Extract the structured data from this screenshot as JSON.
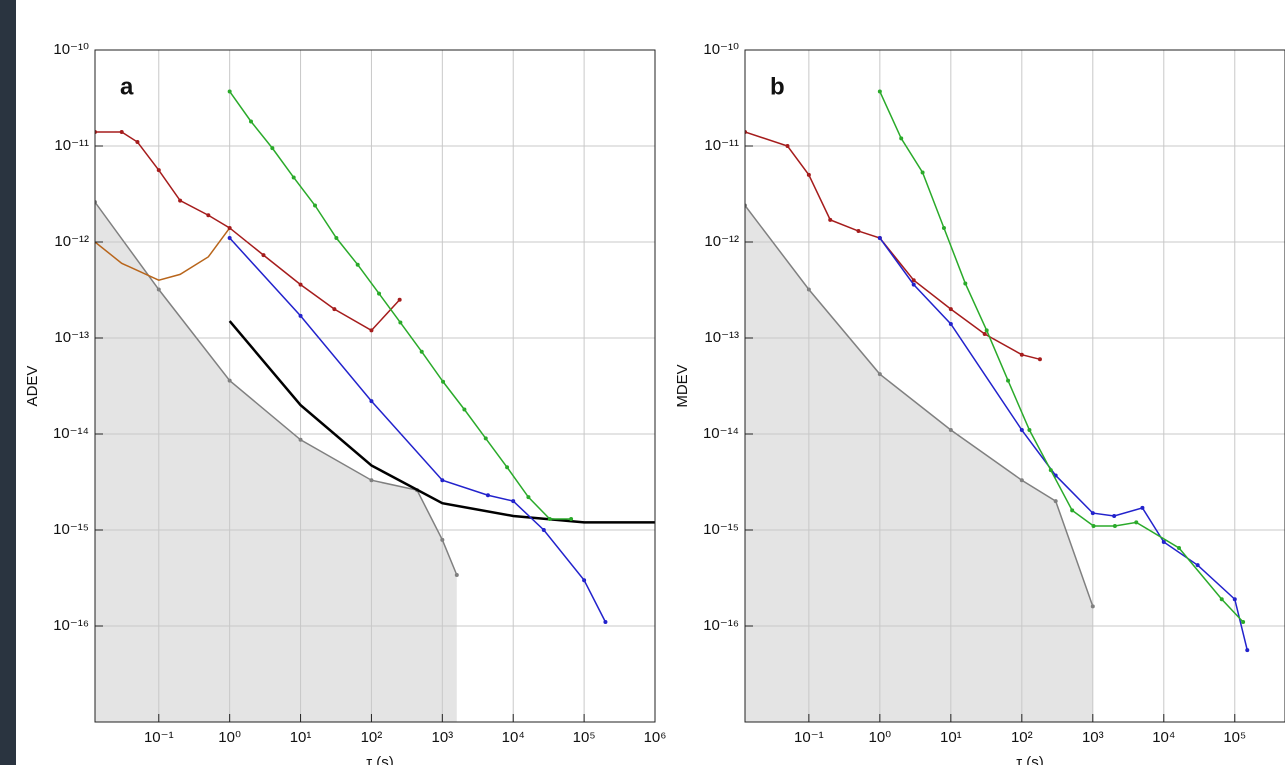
{
  "chart_data": [
    {
      "type": "line",
      "title": "a",
      "y_label": "ADEV",
      "x_label": "τ (s)",
      "xscale": "log",
      "yscale": "log",
      "grid": true,
      "xlim": [
        0.0126,
        1000000
      ],
      "ylim": [
        1e-17,
        1e-10
      ],
      "xticks": [
        {
          "value": 0.1,
          "label": "10⁻¹"
        },
        {
          "value": 1,
          "label": "10⁰"
        },
        {
          "value": 10,
          "label": "10¹"
        },
        {
          "value": 100,
          "label": "10²"
        },
        {
          "value": 1000,
          "label": "10³"
        },
        {
          "value": 10000,
          "label": "10⁴"
        },
        {
          "value": 100000,
          "label": "10⁵"
        },
        {
          "value": 1000000,
          "label": "10⁶"
        }
      ],
      "yticks": [
        {
          "value": 1e-10,
          "label": "10⁻¹⁰"
        },
        {
          "value": 1e-11,
          "label": "10⁻¹¹"
        },
        {
          "value": 1e-12,
          "label": "10⁻¹²"
        },
        {
          "value": 1e-13,
          "label": "10⁻¹³"
        },
        {
          "value": 1e-14,
          "label": "10⁻¹⁴"
        },
        {
          "value": 1e-15,
          "label": "10⁻¹⁵"
        },
        {
          "value": 1e-16,
          "label": "10⁻¹⁶"
        }
      ],
      "series": [
        {
          "color": "#808080",
          "fill": "#e4e4e4",
          "markers": true,
          "x": [
            0.0126,
            0.1,
            1,
            10,
            100,
            440,
            1000,
            1600
          ],
          "values": [
            2.6e-12,
            3.2e-13,
            3.6e-14,
            8.7e-15,
            3.3e-15,
            2.6e-15,
            7.9e-16,
            3.4e-16
          ]
        },
        {
          "color": "#b8651b",
          "markers": false,
          "x": [
            0.0126,
            0.03,
            0.1,
            0.2,
            0.5,
            1
          ],
          "values": [
            1e-12,
            6e-13,
            4e-13,
            4.6e-13,
            7e-13,
            1.4e-12
          ]
        },
        {
          "color": "#a51c1c",
          "markers": true,
          "x": [
            0.0126,
            0.03,
            0.05,
            0.1,
            0.2,
            0.5,
            1,
            3,
            10,
            30,
            100,
            250
          ],
          "values": [
            1.4e-11,
            1.4e-11,
            1.1e-11,
            5.6e-12,
            2.7e-12,
            1.9e-12,
            1.4e-12,
            7.3e-13,
            3.6e-13,
            2e-13,
            1.2e-13,
            2.5e-13
          ]
        },
        {
          "color": "#000000",
          "markers": false,
          "width": 2.5,
          "x": [
            1,
            10,
            100,
            1000,
            10000,
            100000,
            1000000
          ],
          "values": [
            1.5e-13,
            2e-14,
            4.7e-15,
            1.9e-15,
            1.4e-15,
            1.2e-15,
            1.2e-15
          ]
        },
        {
          "color": "#2222cc",
          "markers": true,
          "x": [
            1,
            10,
            100,
            1000,
            4400,
            10000,
            27000,
            100000,
            200000
          ],
          "values": [
            1.1e-12,
            1.7e-13,
            2.2e-14,
            3.3e-15,
            2.3e-15,
            2e-15,
            1e-15,
            3e-16,
            1.1e-16
          ]
        },
        {
          "color": "#2aaa2a",
          "markers": true,
          "x": [
            1,
            2,
            4,
            8,
            16,
            32,
            64,
            128,
            256,
            512,
            1024,
            2048,
            4096,
            8192,
            16384,
            32768,
            65536
          ],
          "values": [
            3.7e-11,
            1.8e-11,
            9.5e-12,
            4.7e-12,
            2.4e-12,
            1.1e-12,
            5.8e-13,
            2.9e-13,
            1.45e-13,
            7.2e-14,
            3.5e-14,
            1.8e-14,
            9e-15,
            4.5e-15,
            2.2e-15,
            1.3e-15,
            1.3e-15
          ]
        }
      ]
    },
    {
      "type": "line",
      "title": "b",
      "y_label": "MDEV",
      "x_label": "τ (s)",
      "xscale": "log",
      "yscale": "log",
      "grid": true,
      "xlim": [
        0.0126,
        510000
      ],
      "ylim": [
        1e-17,
        1e-10
      ],
      "xticks": [
        {
          "value": 0.1,
          "label": "10⁻¹"
        },
        {
          "value": 1,
          "label": "10⁰"
        },
        {
          "value": 10,
          "label": "10¹"
        },
        {
          "value": 100,
          "label": "10²"
        },
        {
          "value": 1000,
          "label": "10³"
        },
        {
          "value": 10000,
          "label": "10⁴"
        },
        {
          "value": 100000,
          "label": "10⁵"
        }
      ],
      "yticks": [
        {
          "value": 1e-10,
          "label": "10⁻¹⁰"
        },
        {
          "value": 1e-11,
          "label": "10⁻¹¹"
        },
        {
          "value": 1e-12,
          "label": "10⁻¹²"
        },
        {
          "value": 1e-13,
          "label": "10⁻¹³"
        },
        {
          "value": 1e-14,
          "label": "10⁻¹⁴"
        },
        {
          "value": 1e-15,
          "label": "10⁻¹⁵"
        },
        {
          "value": 1e-16,
          "label": "10⁻¹⁶"
        }
      ],
      "series": [
        {
          "color": "#808080",
          "fill": "#e4e4e4",
          "markers": true,
          "x": [
            0.0126,
            0.1,
            1,
            10,
            100,
            300,
            1000
          ],
          "values": [
            2.4e-12,
            3.2e-13,
            4.2e-14,
            1.1e-14,
            3.3e-15,
            2e-15,
            1.6e-16
          ]
        },
        {
          "color": "#a51c1c",
          "markers": true,
          "x": [
            0.0126,
            0.05,
            0.1,
            0.2,
            0.5,
            1,
            3,
            10,
            30,
            100,
            180
          ],
          "values": [
            1.4e-11,
            1e-11,
            5e-12,
            1.7e-12,
            1.3e-12,
            1.1e-12,
            4e-13,
            2e-13,
            1.1e-13,
            6.7e-14,
            6e-14
          ]
        },
        {
          "color": "#2222cc",
          "markers": true,
          "x": [
            1,
            3,
            10,
            100,
            300,
            1000,
            2000,
            5000,
            10000,
            30000,
            100000,
            150000
          ],
          "values": [
            1.1e-12,
            3.6e-13,
            1.4e-13,
            1.1e-14,
            3.7e-15,
            1.5e-15,
            1.4e-15,
            1.7e-15,
            7.5e-16,
            4.3e-16,
            1.9e-16,
            5.6e-17
          ]
        },
        {
          "color": "#2aaa2a",
          "markers": true,
          "x": [
            1,
            2,
            4,
            8,
            16,
            32,
            64,
            128,
            256,
            512,
            1024,
            2048,
            4096,
            16384,
            65536,
            131072
          ],
          "values": [
            3.7e-11,
            1.2e-11,
            5.3e-12,
            1.4e-12,
            3.7e-13,
            1.2e-13,
            3.6e-14,
            1.1e-14,
            4.2e-15,
            1.6e-15,
            1.1e-15,
            1.1e-15,
            1.2e-15,
            6.5e-16,
            1.9e-16,
            1.1e-16
          ]
        }
      ]
    }
  ]
}
